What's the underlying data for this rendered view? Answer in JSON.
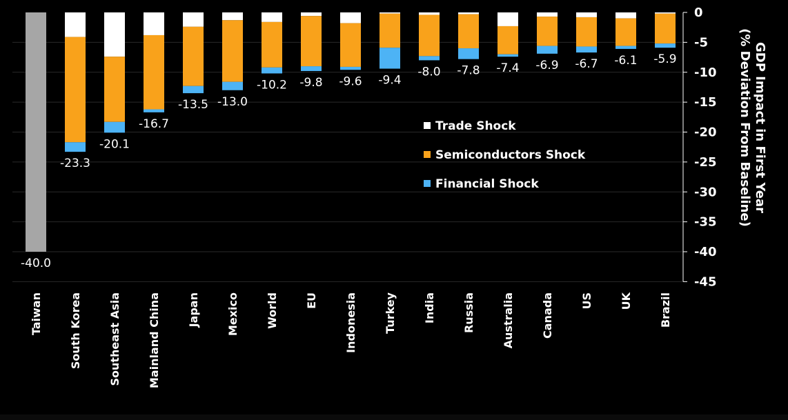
{
  "chart_data": {
    "type": "bar",
    "stacked": true,
    "categories": [
      "Taiwan",
      "South Korea",
      "Southeast Asia",
      "Mainland China",
      "Japan",
      "Mexico",
      "World",
      "EU",
      "Indonesia",
      "Turkey",
      "India",
      "Russia",
      "Australia",
      "Canada",
      "US",
      "UK",
      "Brazil"
    ],
    "totals": [
      -40.0,
      -23.3,
      -20.1,
      -16.7,
      -13.5,
      -13.0,
      -10.2,
      -9.8,
      -9.6,
      -9.4,
      -8.0,
      -7.8,
      -7.4,
      -6.9,
      -6.7,
      -6.1,
      -5.9
    ],
    "total_labels": [
      "-40.0",
      "-23.3",
      "-20.1",
      "-16.7",
      "-13.5",
      "-13.0",
      "-10.2",
      "-9.8",
      "-9.6",
      "-9.4",
      "-8.0",
      "-7.8",
      "-7.4",
      "-6.9",
      "-6.7",
      "-6.1",
      "-5.9"
    ],
    "series": [
      {
        "name": "Trade Shock",
        "color": "#ffffff",
        "values": [
          0,
          -4.1,
          -7.4,
          -3.8,
          -2.4,
          -1.3,
          -1.6,
          -0.6,
          -1.8,
          -0.2,
          -0.4,
          -0.3,
          -2.3,
          -0.7,
          -0.8,
          -1.0,
          -0.2
        ]
      },
      {
        "name": "Semiconductors Shock",
        "color": "#f9a21b",
        "values": [
          0,
          -17.6,
          -10.9,
          -12.4,
          -9.9,
          -10.3,
          -7.6,
          -8.4,
          -7.3,
          -5.7,
          -6.9,
          -5.7,
          -4.7,
          -4.9,
          -4.9,
          -4.6,
          -5.0
        ]
      },
      {
        "name": "Financial Shock",
        "color": "#4db3f5",
        "values": [
          0,
          -1.6,
          -1.8,
          -0.5,
          -1.2,
          -1.4,
          -1.0,
          -0.8,
          -0.5,
          -3.5,
          -0.7,
          -1.8,
          -0.4,
          -1.3,
          -1.0,
          -0.5,
          -0.7
        ]
      },
      {
        "name": "",
        "color": "#a6a6a6",
        "values": [
          -40.0,
          0,
          0,
          0,
          0,
          0,
          0,
          0,
          0,
          0,
          0,
          0,
          0,
          0,
          0,
          0,
          0
        ]
      }
    ],
    "legend": [
      "Trade Shock",
      "Semiconductors Shock",
      "Financial Shock"
    ],
    "legend_position": "right-middle",
    "ylabel_line1": "GDP Impact in First Year",
    "ylabel_line2": "(% Deviation From Baseline)",
    "ylim": [
      -45,
      0
    ],
    "yticks": [
      0,
      -5,
      -10,
      -15,
      -20,
      -25,
      -30,
      -35,
      -40,
      -45
    ],
    "ytick_labels": [
      "0",
      "-5",
      "-10",
      "-15",
      "-20",
      "-25",
      "-30",
      "-35",
      "-40",
      "-45"
    ],
    "y_axis_position": "right",
    "grid": true
  }
}
